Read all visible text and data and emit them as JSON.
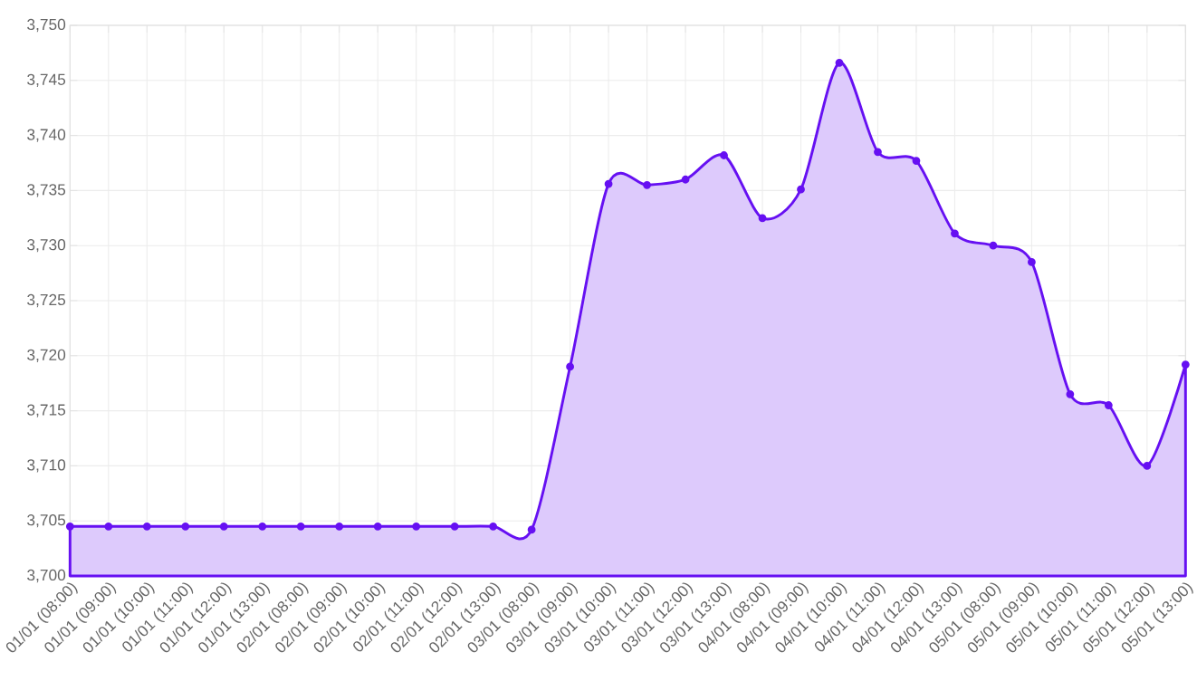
{
  "chart_data": {
    "type": "area",
    "categories": [
      "01/01 (08:00)",
      "01/01 (09:00)",
      "01/01 (10:00)",
      "01/01 (11:00)",
      "01/01 (12:00)",
      "01/01 (13:00)",
      "02/01 (08:00)",
      "02/01 (09:00)",
      "02/01 (10:00)",
      "02/01 (11:00)",
      "02/01 (12:00)",
      "02/01 (13:00)",
      "03/01 (08:00)",
      "03/01 (09:00)",
      "03/01 (10:00)",
      "03/01 (11:00)",
      "03/01 (12:00)",
      "03/01 (13:00)",
      "04/01 (08:00)",
      "04/01 (09:00)",
      "04/01 (10:00)",
      "04/01 (11:00)",
      "04/01 (12:00)",
      "04/01 (13:00)",
      "05/01 (08:00)",
      "05/01 (09:00)",
      "05/01 (10:00)",
      "05/01 (11:00)",
      "05/01 (12:00)",
      "05/01 (13:00)"
    ],
    "values": [
      3704.5,
      3704.5,
      3704.5,
      3704.5,
      3704.5,
      3704.5,
      3704.5,
      3704.5,
      3704.5,
      3704.5,
      3704.5,
      3704.5,
      3704.2,
      3719,
      3735.6,
      3735.5,
      3736,
      3738.2,
      3732.5,
      3735.1,
      3746.6,
      3738.5,
      3737.7,
      3731.1,
      3730,
      3728.5,
      3716.5,
      3715.5,
      3710,
      3719.2
    ],
    "color": "#6610f2",
    "ylim": [
      3700,
      3750
    ],
    "yticks": [
      {
        "value": 3700,
        "label": "3,700"
      },
      {
        "value": 3705,
        "label": "3,705"
      },
      {
        "value": 3710,
        "label": "3,710"
      },
      {
        "value": 3715,
        "label": "3,715"
      },
      {
        "value": 3720,
        "label": "3,720"
      },
      {
        "value": 3725,
        "label": "3,725"
      },
      {
        "value": 3730,
        "label": "3,730"
      },
      {
        "value": 3735,
        "label": "3,735"
      },
      {
        "value": 3740,
        "label": "3,740"
      },
      {
        "value": 3745,
        "label": "3,745"
      },
      {
        "value": 3750,
        "label": "3,750"
      }
    ],
    "grid": true,
    "marker": "circle"
  }
}
